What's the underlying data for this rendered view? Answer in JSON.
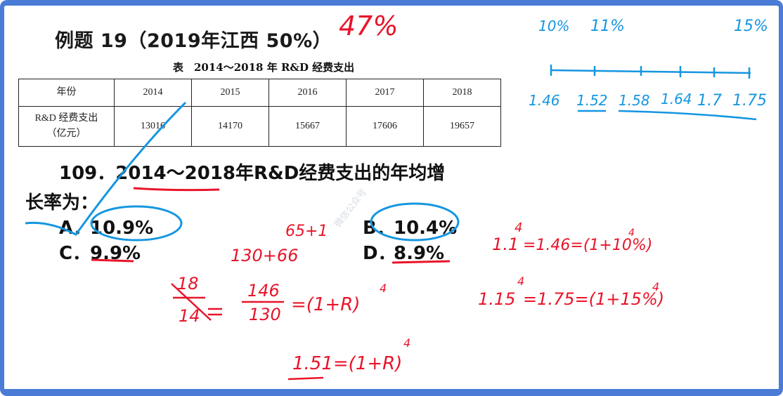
{
  "title": "例题 19（2019年江西 50%）",
  "table": {
    "caption": "表　2014～2018 年 R&D 经费支出",
    "header_label": "年份",
    "years": [
      "2014",
      "2015",
      "2016",
      "2017",
      "2018"
    ],
    "row_label_line1": "R&D 经费支出",
    "row_label_line2": "（亿元）",
    "values": [
      "13016",
      "14170",
      "15667",
      "17606",
      "19657"
    ]
  },
  "question": {
    "line1": "109．2014～2018年R&D经费支出的年均增",
    "line2": "长率为："
  },
  "options": [
    {
      "letter": "A．",
      "text": "10.9%"
    },
    {
      "letter": "B．",
      "text": "10.4%"
    },
    {
      "letter": "C．",
      "text": "9.9%"
    },
    {
      "letter": "D．",
      "text": "8.9%"
    }
  ],
  "watermark": "微信公众号",
  "annotations": {
    "red": {
      "pct47": "47%",
      "add1": "65+1",
      "sum": "130+66",
      "frac_num": "18",
      "frac_den": "14",
      "eq_num": "146",
      "eq_den": "130",
      "eq_rhs": "=(1+R)",
      "eq_exp": "4",
      "eq3": "1.51=(1+R)",
      "eq3_exp": "4",
      "eq4": "1.1",
      "eq4_exp": "4",
      "eq4_rest": "=1.46=(1+10%)",
      "eq4_exp2": "4",
      "eq5": "1.15",
      "eq5_exp": "4",
      "eq5_rest": "=1.75=(1+15%)",
      "eq5_exp2": "4"
    },
    "blue": {
      "p10": "10%",
      "p11": "11%",
      "p15": "15%",
      "scale": [
        "1.46",
        "1.52",
        "1.58",
        "1.64",
        "1.7",
        "1.75"
      ]
    }
  },
  "colors": {
    "frame": "#4a7bd6",
    "red_ink": "#e8152a",
    "blue_ink": "#1596e0"
  }
}
